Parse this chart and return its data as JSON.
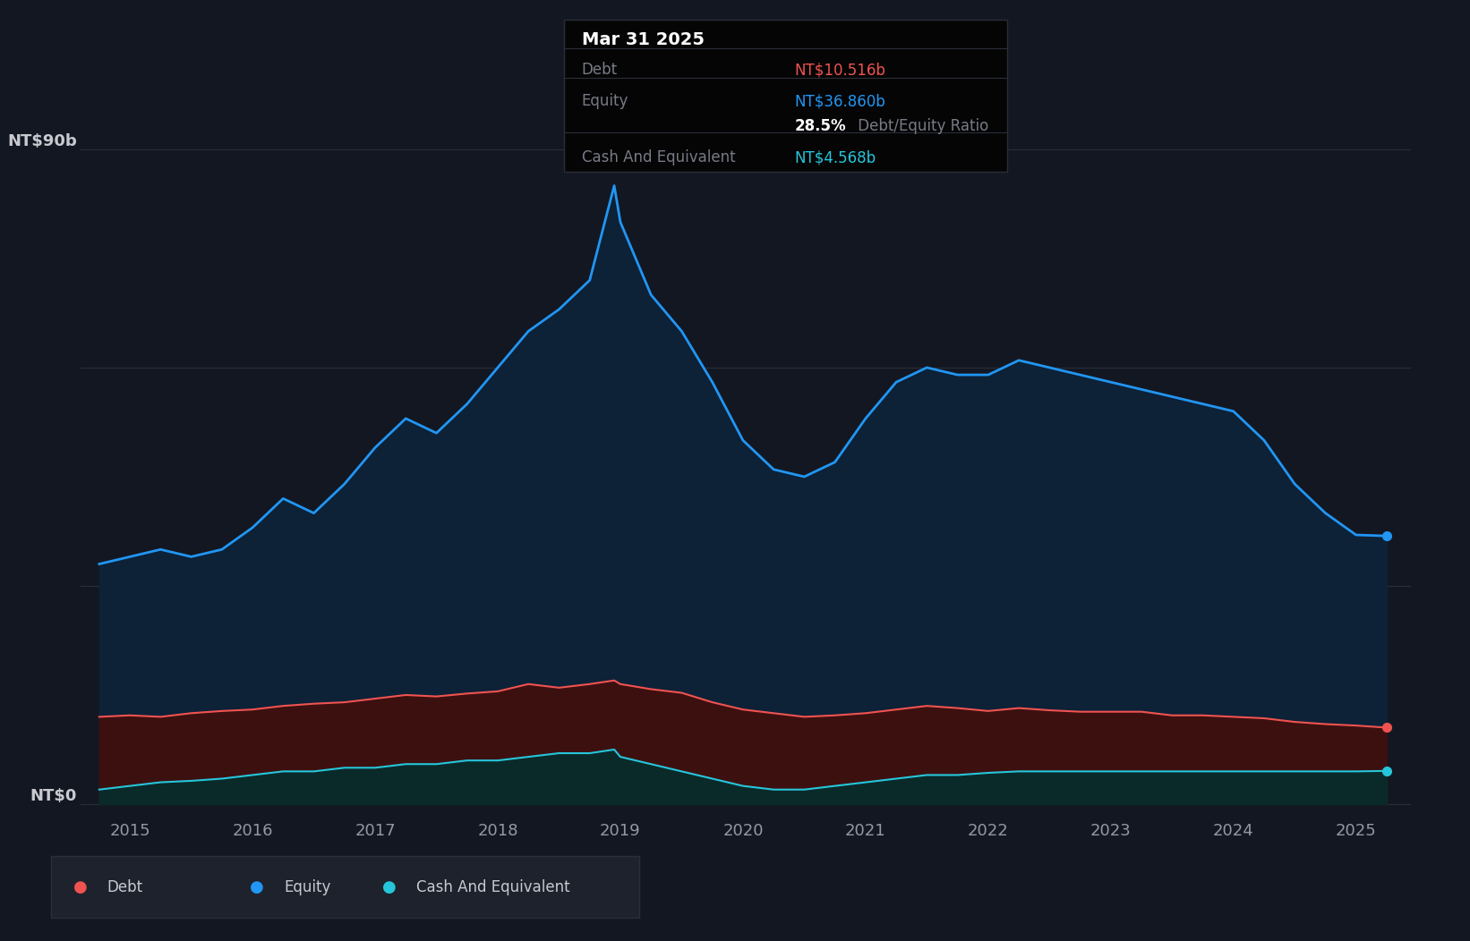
{
  "bg_color": "#131722",
  "plot_bg_color": "#131722",
  "grid_color": "#2a2e39",
  "equity_color": "#2196f3",
  "debt_color": "#ef5350",
  "cash_color": "#26c6da",
  "equity_fill": "#0d2137",
  "debt_fill": "#3d1010",
  "cash_fill": "#0a2a2a",
  "ylabel_top": "NT$90b",
  "ylabel_bottom": "NT$0",
  "xlim_start": 2014.6,
  "xlim_end": 2025.45,
  "ylim_min": -2,
  "ylim_max": 95,
  "infobox_title": "Mar 31 2025",
  "infobox_debt_label": "Debt",
  "infobox_debt_value": "NT$10.516b",
  "infobox_equity_label": "Equity",
  "infobox_equity_value": "NT$36.860b",
  "infobox_ratio_bold": "28.5%",
  "infobox_ratio_rest": " Debt/Equity Ratio",
  "infobox_cash_label": "Cash And Equivalent",
  "infobox_cash_value": "NT$4.568b",
  "legend_items": [
    "Debt",
    "Equity",
    "Cash And Equivalent"
  ],
  "legend_colors": [
    "#ef5350",
    "#2196f3",
    "#26c6da"
  ],
  "years": [
    2014.75,
    2015.0,
    2015.25,
    2015.5,
    2015.75,
    2016.0,
    2016.25,
    2016.5,
    2016.75,
    2017.0,
    2017.25,
    2017.5,
    2017.75,
    2018.0,
    2018.25,
    2018.5,
    2018.75,
    2018.95,
    2019.0,
    2019.25,
    2019.5,
    2019.75,
    2020.0,
    2020.25,
    2020.5,
    2020.75,
    2021.0,
    2021.25,
    2021.5,
    2021.75,
    2022.0,
    2022.25,
    2022.5,
    2022.75,
    2023.0,
    2023.25,
    2023.5,
    2023.75,
    2024.0,
    2024.25,
    2024.5,
    2024.75,
    2025.0,
    2025.25
  ],
  "equity": [
    33,
    34,
    35,
    34,
    35,
    38,
    42,
    40,
    44,
    49,
    53,
    51,
    55,
    60,
    65,
    68,
    72,
    85,
    80,
    70,
    65,
    58,
    50,
    46,
    45,
    47,
    53,
    58,
    60,
    59,
    59,
    61,
    60,
    59,
    58,
    57,
    56,
    55,
    54,
    50,
    44,
    40,
    37,
    36.86
  ],
  "debt": [
    12,
    12.2,
    12.0,
    12.5,
    12.8,
    13.0,
    13.5,
    13.8,
    14.0,
    14.5,
    15.0,
    14.8,
    15.2,
    15.5,
    16.5,
    16.0,
    16.5,
    17.0,
    16.5,
    15.8,
    15.3,
    14.0,
    13.0,
    12.5,
    12.0,
    12.2,
    12.5,
    13.0,
    13.5,
    13.2,
    12.8,
    13.2,
    12.9,
    12.7,
    12.7,
    12.7,
    12.2,
    12.2,
    12.0,
    11.8,
    11.3,
    11.0,
    10.8,
    10.516
  ],
  "cash": [
    2.0,
    2.5,
    3.0,
    3.2,
    3.5,
    4.0,
    4.5,
    4.5,
    5.0,
    5.0,
    5.5,
    5.5,
    6.0,
    6.0,
    6.5,
    7.0,
    7.0,
    7.5,
    6.5,
    5.5,
    4.5,
    3.5,
    2.5,
    2.0,
    2.0,
    2.5,
    3.0,
    3.5,
    4.0,
    4.0,
    4.3,
    4.5,
    4.5,
    4.5,
    4.5,
    4.5,
    4.5,
    4.5,
    4.5,
    4.5,
    4.5,
    4.5,
    4.5,
    4.568
  ]
}
